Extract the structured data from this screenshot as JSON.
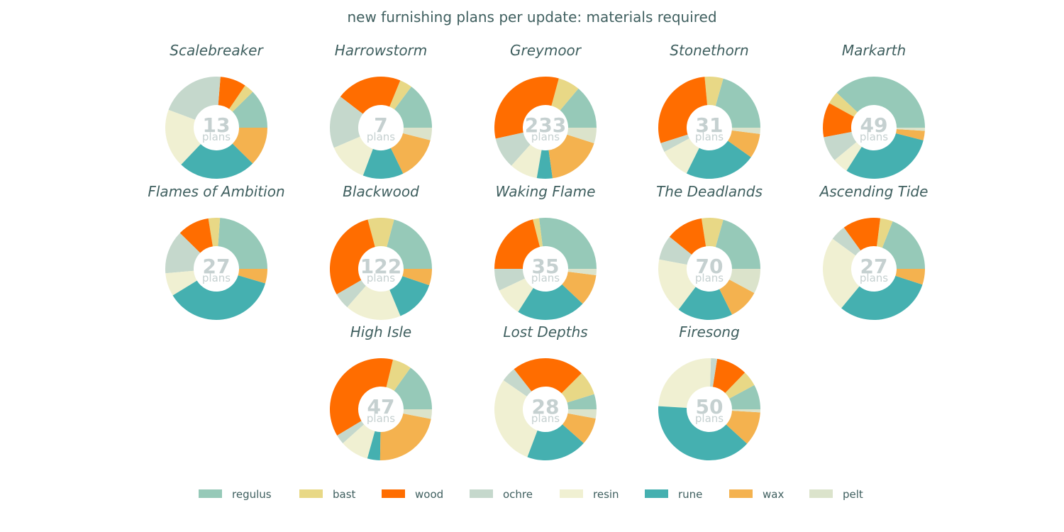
{
  "chart_data": {
    "type": "pie",
    "title": "new furnishing plans per update: materials required",
    "center_unit": "plans",
    "categories": [
      "regulus",
      "bast",
      "wood",
      "ochre",
      "resin",
      "rune",
      "wax",
      "pelt"
    ],
    "colors": {
      "regulus": "#96c9b8",
      "bast": "#e8d886",
      "wood": "#ff6d00",
      "ochre": "#c5d8cc",
      "resin": "#f0f0d2",
      "rune": "#45b0b0",
      "wax": "#f4b24f",
      "pelt": "#dbe3cb"
    },
    "legend_position": "bottom",
    "charts": [
      {
        "name": "Scalebreaker",
        "plans": "13",
        "values": {
          "regulus": 12,
          "bast": 3,
          "wood": 8,
          "ochre": 20,
          "resin": 18,
          "rune": 24,
          "wax": 12,
          "pelt": 0
        }
      },
      {
        "name": "Harrowstorm",
        "plans": "7",
        "values": {
          "regulus": 15,
          "bast": 4,
          "wood": 21,
          "ochre": 17,
          "resin": 13,
          "rune": 13,
          "wax": 14,
          "pelt": 4
        }
      },
      {
        "name": "Greymoor",
        "plans": "233",
        "values": {
          "regulus": 14,
          "bast": 7,
          "wood": 33,
          "ochre": 10,
          "resin": 9,
          "rune": 5,
          "wax": 18,
          "pelt": 5
        }
      },
      {
        "name": "Stonethorn",
        "plans": "31",
        "values": {
          "regulus": 21,
          "bast": 6,
          "wood": 29,
          "ochre": 3,
          "resin": 10,
          "rune": 23,
          "wax": 8,
          "pelt": 2
        }
      },
      {
        "name": "Markarth",
        "plans": "49",
        "values": {
          "regulus": 38,
          "bast": 4,
          "wood": 11,
          "ochre": 8,
          "resin": 5,
          "rune": 30,
          "wax": 3,
          "pelt": 1
        }
      },
      {
        "name": "Flames of Ambition",
        "plans": "27",
        "values": {
          "regulus": 26,
          "bast": 4,
          "wood": 11,
          "ochre": 15,
          "resin": 8,
          "rune": 40,
          "wax": 5,
          "pelt": 0
        }
      },
      {
        "name": "Blackwood",
        "plans": "122",
        "values": {
          "regulus": 20,
          "bast": 8,
          "wood": 28,
          "ochre": 5,
          "resin": 17,
          "rune": 13,
          "wax": 5,
          "pelt": 0
        }
      },
      {
        "name": "Waking Flame",
        "plans": "35",
        "values": {
          "regulus": 27,
          "bast": 2,
          "wood": 21,
          "ochre": 7,
          "resin": 9,
          "rune": 22,
          "wax": 10,
          "pelt": 2
        }
      },
      {
        "name": "The Deadlands",
        "plans": "70",
        "values": {
          "regulus": 21,
          "bast": 7,
          "wood": 12,
          "ochre": 8,
          "resin": 18,
          "rune": 18,
          "wax": 10,
          "pelt": 8
        }
      },
      {
        "name": "Ascending Tide",
        "plans": "27",
        "values": {
          "regulus": 19,
          "bast": 4,
          "wood": 12,
          "ochre": 5,
          "resin": 24,
          "rune": 31,
          "wax": 5,
          "pelt": 0
        }
      },
      {
        "name": "High Isle",
        "plans": "47",
        "values": {
          "regulus": 15,
          "bast": 6,
          "wood": 37,
          "ochre": 3,
          "resin": 9,
          "rune": 4,
          "wax": 22,
          "pelt": 3
        }
      },
      {
        "name": "Lost Depths",
        "plans": "28",
        "values": {
          "regulus": 5,
          "bast": 8,
          "wood": 24,
          "ochre": 5,
          "resin": 30,
          "rune": 20,
          "wax": 9,
          "pelt": 3
        }
      },
      {
        "name": "Firesong",
        "plans": "50",
        "values": {
          "regulus": 8,
          "bast": 5,
          "wood": 10,
          "ochre": 2,
          "resin": 25,
          "rune": 40,
          "wax": 11,
          "pelt": 1
        }
      }
    ]
  }
}
